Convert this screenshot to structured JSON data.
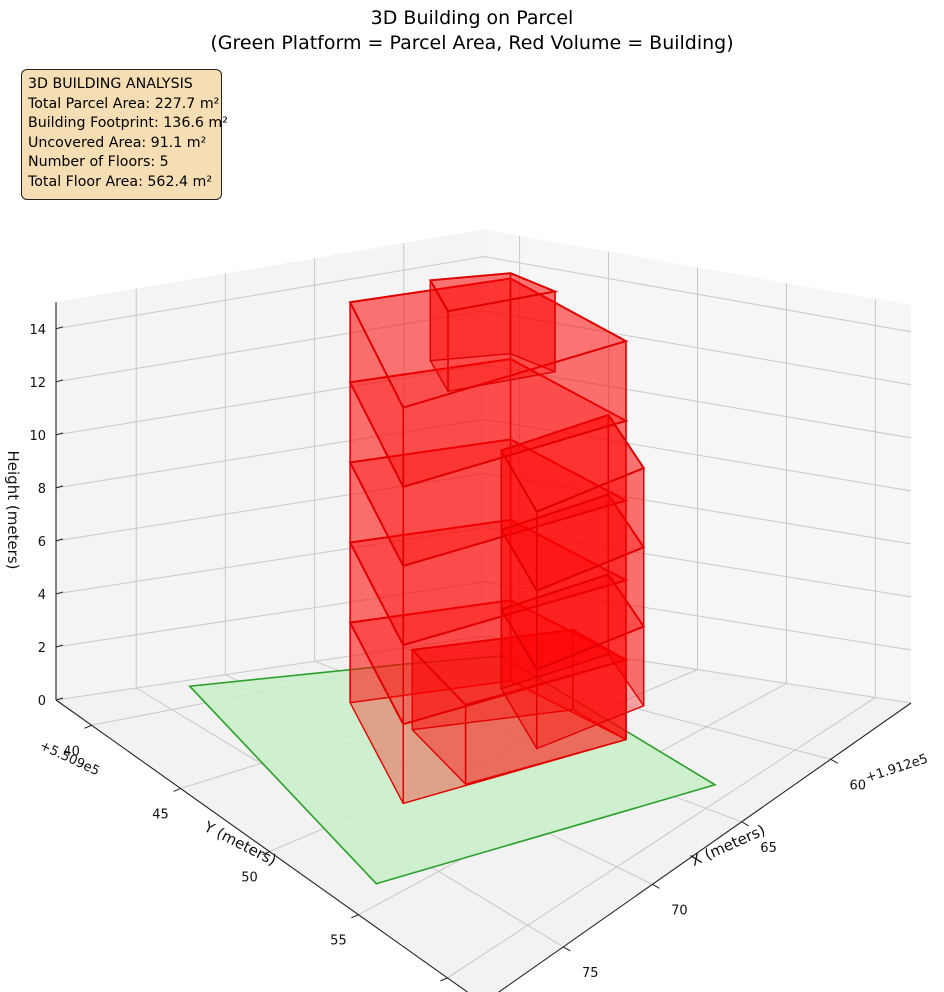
{
  "title_line1": "3D Building on Parcel",
  "title_line2": "(Green Platform = Parcel Area, Red Volume = Building)",
  "info_box": {
    "heading": "3D BUILDING ANALYSIS",
    "parcel_area": "Total Parcel Area: 227.7 m²",
    "footprint": "Building Footprint: 136.6 m²",
    "uncovered": "Uncovered Area: 91.1 m²",
    "floors": "Number of Floors: 5",
    "floor_area": "Total Floor Area: 562.4 m²"
  },
  "colors": {
    "parcel_fill": "#c8f0c8",
    "parcel_edge": "#2ca02c",
    "building_fill": "#ff0000",
    "building_edge": "#e00000",
    "info_bg": "#f5deb3"
  },
  "chart_data": {
    "type": "3d-polygon",
    "xlabel": "X (meters)",
    "ylabel": "Y (meters)",
    "zlabel": "Height (meters)",
    "x_offset_label": "+1.912e5",
    "y_offset_label": "+5.509e5",
    "xlim": [
      38,
      62
    ],
    "ylim": [
      55.5,
      79.5
    ],
    "zlim": [
      0,
      15
    ],
    "x_ticks": [
      40,
      45,
      50,
      55,
      60
    ],
    "y_ticks": [
      60,
      65,
      70,
      75
    ],
    "z_ticks": [
      0,
      2,
      4,
      6,
      8,
      10,
      12,
      14
    ],
    "grid": true,
    "parcel_polygon": [
      [
        41.5,
        58.0
      ],
      [
        59.0,
        63.5
      ],
      [
        54.0,
        77.5
      ],
      [
        38.5,
        72.5
      ],
      [
        40.0,
        62.0
      ]
    ],
    "building_parts": [
      {
        "polygon": [
          [
            44.5,
            60.5
          ],
          [
            53.0,
            62.5
          ],
          [
            50.5,
            72.5
          ],
          [
            42.5,
            67.5
          ]
        ],
        "z_levels": [
          0,
          3,
          6,
          9,
          12,
          15
        ]
      },
      {
        "polygon": [
          [
            49.0,
            61.5
          ],
          [
            53.0,
            62.5
          ],
          [
            51.0,
            69.5
          ],
          [
            46.0,
            67.5
          ]
        ],
        "z_levels": [
          0,
          3
        ]
      },
      {
        "polygon": [
          [
            52.0,
            62.5
          ],
          [
            56.5,
            65.0
          ],
          [
            55.5,
            70.0
          ],
          [
            51.0,
            67.5
          ]
        ],
        "z_levels": [
          3,
          6,
          9,
          12
        ]
      },
      {
        "polygon": [
          [
            44.0,
            60.0
          ],
          [
            47.0,
            60.5
          ],
          [
            45.5,
            65.0
          ],
          [
            42.5,
            63.0
          ]
        ],
        "z_levels": [
          12,
          15
        ]
      }
    ]
  }
}
